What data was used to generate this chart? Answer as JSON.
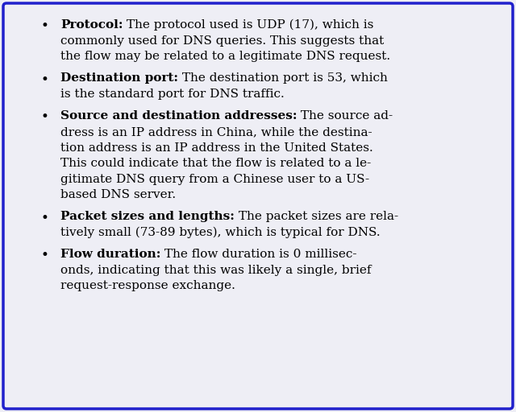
{
  "background_color": "#eeeef5",
  "border_color": "#2020cc",
  "border_linewidth": 2.5,
  "font_size": 11.0,
  "font_family": "DejaVu Serif",
  "text_color": "#000000",
  "fig_width": 6.4,
  "fig_height": 5.12,
  "dpi": 100,
  "bullets": [
    {
      "bold_part": "Protocol:",
      "normal_part": " The protocol used is UDP (17), which is\ncommonly used for DNS queries. This suggests that\nthe flow may be related to a legitimate DNS request."
    },
    {
      "bold_part": "Destination port:",
      "normal_part": " The destination port is 53, which\nis the standard port for DNS traffic."
    },
    {
      "bold_part": "Source and destination addresses:",
      "normal_part": " The source ad-\ndress is an IP address in China, while the destina-\ntion address is an IP address in the United States.\nThis could indicate that the flow is related to a le-\ngitimate DNS query from a Chinese user to a US-\nbased DNS server."
    },
    {
      "bold_part": "Packet sizes and lengths:",
      "normal_part": " The packet sizes are rela-\ntively small (73-89 bytes), which is typical for DNS."
    },
    {
      "bold_part": "Flow duration:",
      "normal_part": " The flow duration is 0 millisec-\nonds, indicating that this was likely a single, brief\nrequest-response exchange."
    }
  ]
}
